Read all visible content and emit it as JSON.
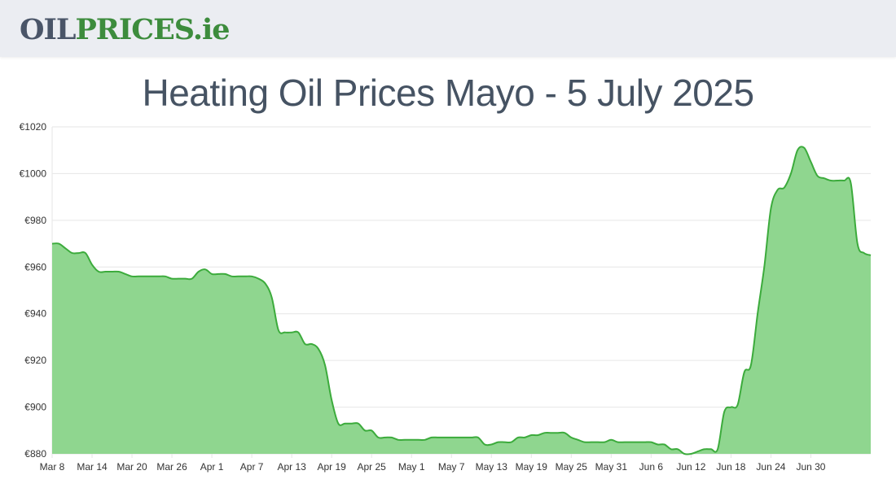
{
  "logo": {
    "part1": "OIL",
    "part2": "PRICES",
    "part3": ".ie"
  },
  "chart_data": {
    "type": "area",
    "title": "Heating Oil Prices Mayo - 5 July 2025",
    "xlabel": "",
    "ylabel": "",
    "ylim": [
      880,
      1020
    ],
    "yticks": [
      880,
      900,
      920,
      940,
      960,
      980,
      1000,
      1020
    ],
    "ytick_prefix": "€",
    "grid": true,
    "x_start": "Mar 8",
    "x_end": "Jul 4",
    "xtick_labels": [
      "Mar 8",
      "Mar 14",
      "Mar 20",
      "Mar 26",
      "Apr 1",
      "Apr 7",
      "Apr 13",
      "Apr 19",
      "Apr 25",
      "May 1",
      "May 7",
      "May 13",
      "May 19",
      "May 25",
      "May 31",
      "Jun 6",
      "Jun 12",
      "Jun 18",
      "Jun 24",
      "Jun 30"
    ],
    "colors": {
      "line": "#3cab3c",
      "fill": "#8fd68f",
      "grid": "#e6e6e6"
    },
    "series": [
      {
        "values": [
          970,
          970,
          968,
          966,
          966,
          966,
          961,
          958,
          958,
          958,
          958,
          957,
          956,
          956,
          956,
          956,
          956,
          956,
          955,
          955,
          955,
          955,
          958,
          959,
          957,
          957,
          957,
          956,
          956,
          956,
          956,
          955,
          953,
          947,
          933,
          932,
          932,
          932,
          927,
          927,
          925,
          918,
          903,
          893,
          893,
          893,
          893,
          890,
          890,
          887,
          887,
          887,
          886,
          886,
          886,
          886,
          886,
          887,
          887,
          887,
          887,
          887,
          887,
          887,
          887,
          884,
          884,
          885,
          885,
          885,
          887,
          887,
          888,
          888,
          889,
          889,
          889,
          889,
          887,
          886,
          885,
          885,
          885,
          885,
          886,
          885,
          885,
          885,
          885,
          885,
          885,
          884,
          884,
          882,
          882,
          880,
          880,
          881,
          882,
          882,
          882,
          898,
          900,
          901,
          915,
          918,
          940,
          960,
          985,
          993,
          994,
          1000,
          1010,
          1011,
          1005,
          999,
          998,
          997,
          997,
          997,
          996,
          970,
          966,
          965
        ]
      }
    ]
  }
}
